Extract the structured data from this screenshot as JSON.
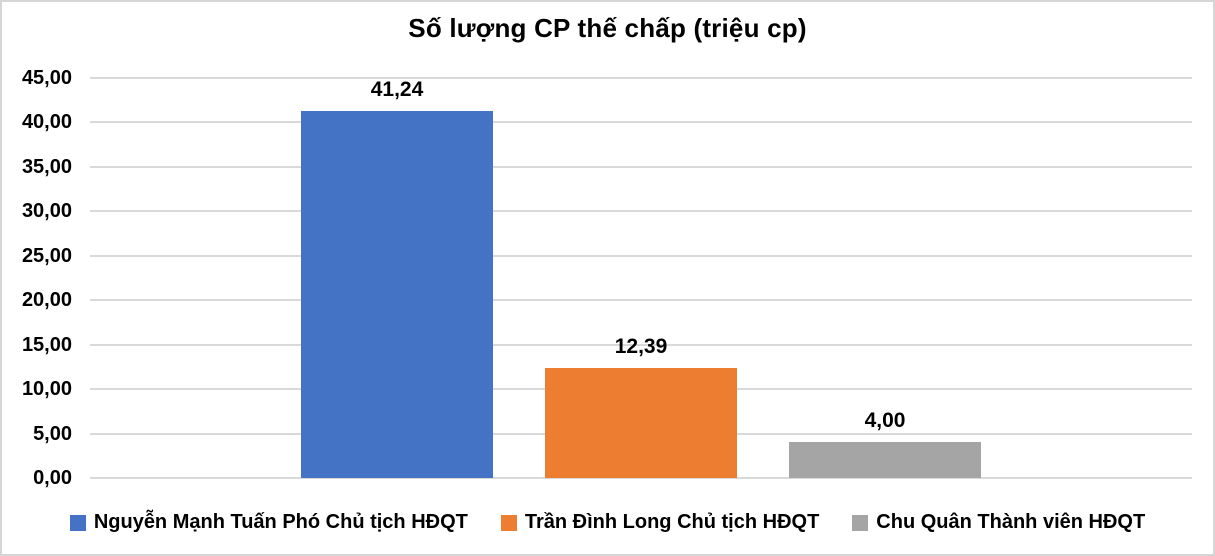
{
  "chart_data": {
    "type": "bar",
    "title": "Số lượng CP thế chấp (triệu cp)",
    "categories": [
      ""
    ],
    "series": [
      {
        "name": "Nguyễn Mạnh Tuấn Phó Chủ tịch HĐQT",
        "values": [
          41.24
        ],
        "data_label": "41,24",
        "color": "#4472C4"
      },
      {
        "name": "Trần Đình Long Chủ tịch HĐQT",
        "values": [
          12.39
        ],
        "data_label": "12,39",
        "color": "#ED7D31"
      },
      {
        "name": "Chu Quân Thành viên HĐQT",
        "values": [
          4.0
        ],
        "data_label": "4,00",
        "color": "#A5A5A5"
      }
    ],
    "xlabel": "",
    "ylabel": "",
    "ylim": [
      0,
      45
    ],
    "ytick_step": 5,
    "ytick_labels": [
      "0,00",
      "5,00",
      "10,00",
      "15,00",
      "20,00",
      "25,00",
      "30,00",
      "35,00",
      "40,00",
      "45,00"
    ],
    "grid": true,
    "gridline_color": "#D9D9D9",
    "legend_position": "bottom",
    "text_color": "#000000",
    "background_color": "#FFFFFF",
    "border_color": "#D6D6D6"
  }
}
